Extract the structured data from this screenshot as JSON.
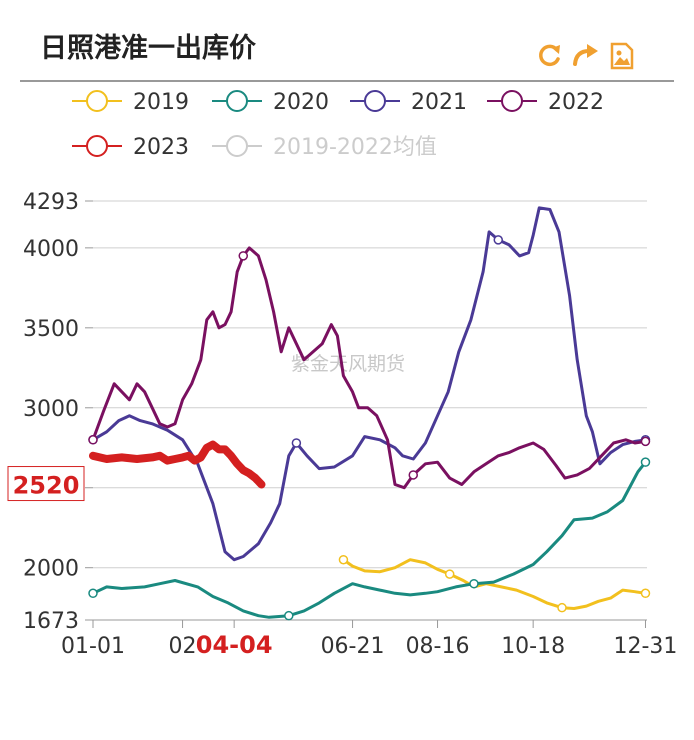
{
  "title": "日照港准一出库价",
  "toolbar": [
    {
      "name": "refresh-icon",
      "color": "#f0a030"
    },
    {
      "name": "share-icon",
      "color": "#f0a030"
    },
    {
      "name": "save-image-icon",
      "color": "#f0a030"
    }
  ],
  "watermark": "紫金天风期货",
  "chart_data": {
    "type": "line",
    "title": "日照港准一出库价",
    "xlabel": "",
    "ylabel": "",
    "xlim": [
      1,
      366
    ],
    "ylim": [
      1673,
      4293
    ],
    "y_ticks": [
      1673,
      2000,
      2500,
      3000,
      3500,
      4000,
      4293
    ],
    "x_ticks": [
      {
        "label": "01-01",
        "day": 1
      },
      {
        "label": "02",
        "day": 60
      },
      {
        "label": "04-04",
        "day": 94
      },
      {
        "label": "06-21",
        "day": 172
      },
      {
        "label": "08-16",
        "day": 228
      },
      {
        "label": "10-18",
        "day": 291
      },
      {
        "label": "12-31",
        "day": 365
      }
    ],
    "highlight_x_label": "04-04",
    "highlight_y_label": "2520",
    "grid": true,
    "legend_position": "top",
    "series": [
      {
        "name": "2019",
        "color": "#f2c01e",
        "visible": true,
        "points": [
          [
            166,
            2050
          ],
          [
            172,
            2010
          ],
          [
            180,
            1980
          ],
          [
            190,
            1975
          ],
          [
            200,
            2000
          ],
          [
            210,
            2050
          ],
          [
            220,
            2030
          ],
          [
            228,
            1990
          ],
          [
            236,
            1960
          ],
          [
            245,
            1920
          ],
          [
            252,
            1880
          ],
          [
            260,
            1900
          ],
          [
            270,
            1880
          ],
          [
            280,
            1860
          ],
          [
            291,
            1820
          ],
          [
            300,
            1780
          ],
          [
            310,
            1750
          ],
          [
            318,
            1745
          ],
          [
            326,
            1760
          ],
          [
            334,
            1790
          ],
          [
            342,
            1810
          ],
          [
            350,
            1860
          ],
          [
            358,
            1850
          ],
          [
            365,
            1840
          ]
        ]
      },
      {
        "name": "2020",
        "color": "#1a8a80",
        "visible": true,
        "points": [
          [
            1,
            1840
          ],
          [
            10,
            1880
          ],
          [
            20,
            1870
          ],
          [
            35,
            1880
          ],
          [
            45,
            1900
          ],
          [
            55,
            1920
          ],
          [
            70,
            1880
          ],
          [
            80,
            1820
          ],
          [
            90,
            1780
          ],
          [
            100,
            1730
          ],
          [
            110,
            1700
          ],
          [
            117,
            1690
          ],
          [
            130,
            1700
          ],
          [
            140,
            1730
          ],
          [
            150,
            1780
          ],
          [
            160,
            1840
          ],
          [
            172,
            1900
          ],
          [
            180,
            1880
          ],
          [
            190,
            1860
          ],
          [
            200,
            1840
          ],
          [
            210,
            1830
          ],
          [
            220,
            1840
          ],
          [
            228,
            1850
          ],
          [
            240,
            1880
          ],
          [
            252,
            1900
          ],
          [
            265,
            1910
          ],
          [
            278,
            1960
          ],
          [
            291,
            2020
          ],
          [
            300,
            2100
          ],
          [
            310,
            2200
          ],
          [
            318,
            2300
          ],
          [
            330,
            2310
          ],
          [
            340,
            2350
          ],
          [
            350,
            2420
          ],
          [
            360,
            2600
          ],
          [
            365,
            2660
          ]
        ]
      },
      {
        "name": "2021",
        "color": "#4a3a96",
        "visible": true,
        "points": [
          [
            1,
            2800
          ],
          [
            10,
            2850
          ],
          [
            18,
            2920
          ],
          [
            25,
            2950
          ],
          [
            32,
            2920
          ],
          [
            40,
            2900
          ],
          [
            50,
            2860
          ],
          [
            60,
            2800
          ],
          [
            70,
            2650
          ],
          [
            80,
            2400
          ],
          [
            88,
            2100
          ],
          [
            94,
            2050
          ],
          [
            100,
            2070
          ],
          [
            110,
            2150
          ],
          [
            118,
            2280
          ],
          [
            124,
            2400
          ],
          [
            130,
            2700
          ],
          [
            135,
            2780
          ],
          [
            142,
            2700
          ],
          [
            150,
            2620
          ],
          [
            160,
            2630
          ],
          [
            172,
            2700
          ],
          [
            180,
            2820
          ],
          [
            190,
            2800
          ],
          [
            200,
            2750
          ],
          [
            205,
            2700
          ],
          [
            212,
            2680
          ],
          [
            220,
            2780
          ],
          [
            228,
            2950
          ],
          [
            235,
            3100
          ],
          [
            242,
            3350
          ],
          [
            250,
            3550
          ],
          [
            258,
            3850
          ],
          [
            262,
            4100
          ],
          [
            268,
            4050
          ],
          [
            275,
            4020
          ],
          [
            282,
            3950
          ],
          [
            288,
            3970
          ],
          [
            291,
            4080
          ],
          [
            295,
            4250
          ],
          [
            302,
            4240
          ],
          [
            308,
            4100
          ],
          [
            315,
            3700
          ],
          [
            320,
            3300
          ],
          [
            326,
            2950
          ],
          [
            330,
            2850
          ],
          [
            335,
            2650
          ],
          [
            342,
            2720
          ],
          [
            350,
            2770
          ],
          [
            358,
            2790
          ],
          [
            365,
            2800
          ]
        ]
      },
      {
        "name": "2022",
        "color": "#7a1060",
        "visible": true,
        "points": [
          [
            1,
            2800
          ],
          [
            8,
            2980
          ],
          [
            15,
            3150
          ],
          [
            20,
            3100
          ],
          [
            25,
            3050
          ],
          [
            30,
            3150
          ],
          [
            35,
            3100
          ],
          [
            40,
            3000
          ],
          [
            45,
            2900
          ],
          [
            50,
            2880
          ],
          [
            55,
            2900
          ],
          [
            60,
            3050
          ],
          [
            66,
            3150
          ],
          [
            72,
            3300
          ],
          [
            76,
            3550
          ],
          [
            80,
            3600
          ],
          [
            84,
            3500
          ],
          [
            88,
            3520
          ],
          [
            92,
            3600
          ],
          [
            96,
            3850
          ],
          [
            100,
            3950
          ],
          [
            104,
            4000
          ],
          [
            110,
            3950
          ],
          [
            115,
            3800
          ],
          [
            120,
            3600
          ],
          [
            125,
            3350
          ],
          [
            130,
            3500
          ],
          [
            135,
            3400
          ],
          [
            140,
            3300
          ],
          [
            146,
            3350
          ],
          [
            152,
            3400
          ],
          [
            158,
            3520
          ],
          [
            162,
            3450
          ],
          [
            166,
            3200
          ],
          [
            172,
            3100
          ],
          [
            176,
            3000
          ],
          [
            182,
            3000
          ],
          [
            188,
            2950
          ],
          [
            195,
            2800
          ],
          [
            200,
            2520
          ],
          [
            206,
            2500
          ],
          [
            212,
            2580
          ],
          [
            220,
            2650
          ],
          [
            228,
            2660
          ],
          [
            236,
            2560
          ],
          [
            244,
            2520
          ],
          [
            252,
            2600
          ],
          [
            260,
            2650
          ],
          [
            268,
            2700
          ],
          [
            275,
            2720
          ],
          [
            282,
            2750
          ],
          [
            291,
            2780
          ],
          [
            298,
            2740
          ],
          [
            306,
            2640
          ],
          [
            312,
            2560
          ],
          [
            320,
            2580
          ],
          [
            328,
            2620
          ],
          [
            336,
            2700
          ],
          [
            344,
            2780
          ],
          [
            352,
            2800
          ],
          [
            358,
            2780
          ],
          [
            365,
            2790
          ]
        ]
      },
      {
        "name": "2023",
        "color": "#d42020",
        "visible": true,
        "points": [
          [
            1,
            2700
          ],
          [
            10,
            2680
          ],
          [
            20,
            2690
          ],
          [
            30,
            2680
          ],
          [
            40,
            2690
          ],
          [
            45,
            2700
          ],
          [
            50,
            2670
          ],
          [
            55,
            2680
          ],
          [
            60,
            2690
          ],
          [
            64,
            2700
          ],
          [
            68,
            2670
          ],
          [
            72,
            2690
          ],
          [
            76,
            2750
          ],
          [
            80,
            2770
          ],
          [
            84,
            2740
          ],
          [
            88,
            2740
          ],
          [
            92,
            2700
          ],
          [
            96,
            2650
          ],
          [
            100,
            2610
          ],
          [
            104,
            2590
          ],
          [
            108,
            2560
          ],
          [
            112,
            2520
          ]
        ]
      },
      {
        "name": "2019-2022均值",
        "color": "#cccccc",
        "visible": false,
        "points": []
      }
    ]
  }
}
